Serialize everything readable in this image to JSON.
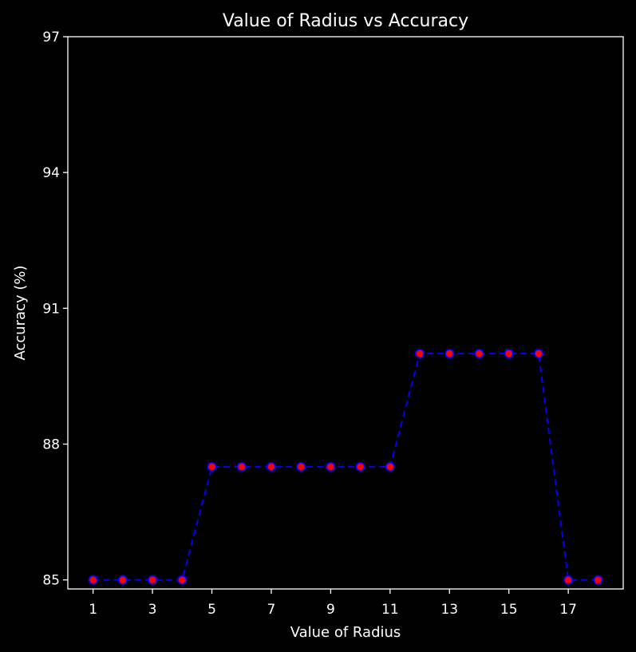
{
  "chart_data": {
    "type": "line",
    "title": "Value of Radius vs Accuracy",
    "xlabel": "Value of Radius",
    "ylabel": "Accuracy (%)",
    "x": [
      1,
      2,
      3,
      4,
      5,
      6,
      7,
      8,
      9,
      10,
      11,
      12,
      13,
      14,
      15,
      16,
      17,
      18
    ],
    "series": [
      {
        "values": [
          85.0,
          85.0,
          85.0,
          85.0,
          87.5,
          87.5,
          87.5,
          87.5,
          87.5,
          87.5,
          87.5,
          90.0,
          90.0,
          90.0,
          90.0,
          90.0,
          85.0,
          85.0
        ],
        "line_color": "#0000ff",
        "line_style": "dashed",
        "marker": "circle",
        "marker_face_color": "#ff0000",
        "marker_edge_color": "#0000ff"
      }
    ],
    "xticks": [
      "1",
      "3",
      "5",
      "7",
      "9",
      "11",
      "13",
      "15",
      "17"
    ],
    "yticks": [
      "85",
      "88",
      "91",
      "94",
      "97"
    ],
    "xlim": [
      0.15,
      18.85
    ],
    "ylim": [
      84.8,
      97
    ],
    "grid": false,
    "background_color": "#000000",
    "text_color": "#ffffff"
  }
}
